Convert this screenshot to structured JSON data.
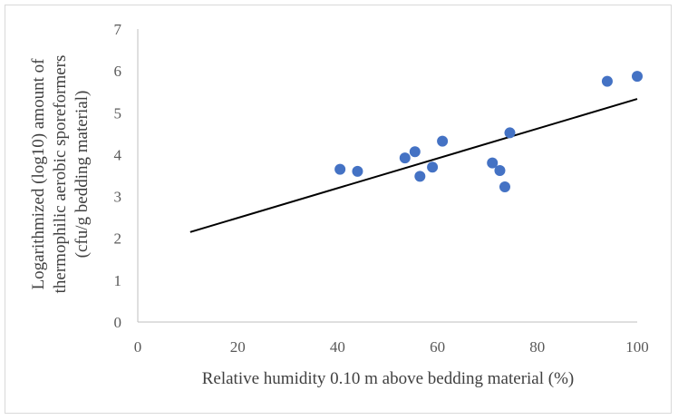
{
  "chart_data": {
    "type": "scatter",
    "title": "",
    "xlabel": "Relative humidity 0.10 m above bedding material (%)",
    "ylabel_lines": [
      "Logarithmized (log10) amount of",
      "thermophilic aerobic sporeformers",
      "(cfu/g bedding material)"
    ],
    "xlim": [
      0,
      100
    ],
    "ylim": [
      0,
      7
    ],
    "xticks": [
      "0",
      "20",
      "40",
      "60",
      "80",
      "100"
    ],
    "yticks": [
      "0",
      "1",
      "2",
      "3",
      "4",
      "5",
      "6",
      "7"
    ],
    "x": [
      40.5,
      44,
      53.5,
      55.5,
      56.5,
      59,
      61,
      71,
      72.5,
      73.5,
      74.5,
      94,
      100
    ],
    "y": [
      3.65,
      3.6,
      3.92,
      4.07,
      3.48,
      3.7,
      4.32,
      3.8,
      3.62,
      3.23,
      4.52,
      5.75,
      5.87
    ],
    "trendline": {
      "x": [
        10.5,
        100
      ],
      "y": [
        2.15,
        5.33
      ]
    },
    "marker_color": "#4472c4",
    "line_color": "#000000"
  }
}
